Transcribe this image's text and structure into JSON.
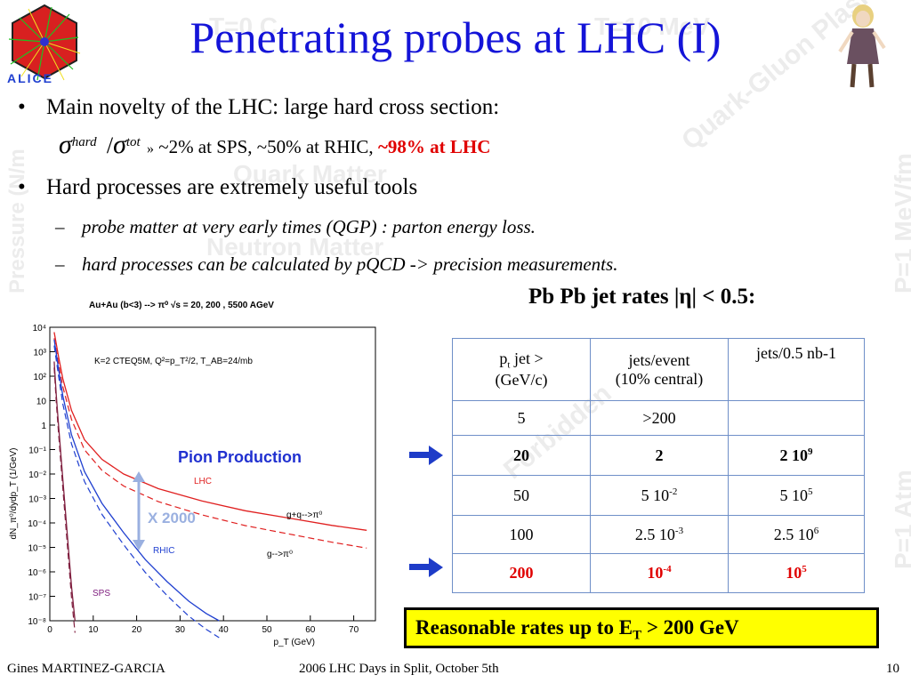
{
  "slide": {
    "title": "Penetrating probes at LHC (I)",
    "logo_text": "ALICE",
    "watermarks": [
      "T=0 C",
      "T=10 MeV",
      "Quark-Gluon Plasma",
      "Quark Matter",
      "Neutron Matter",
      "P=1 MeV/fm",
      "P=1 Atm",
      "Pressure (N/m",
      "Forbidden"
    ],
    "bullets": {
      "b1": "Main novelty of the LHC: large hard cross section:",
      "sigma_hard_sup": "hard",
      "sigma_tot_sup": "tot",
      "ratio_text": "~2% at SPS, ~50% at RHIC, ",
      "ratio_highlight": "~98% at LHC",
      "b2": "Hard processes are extremely useful tools",
      "sub1": "probe matter at very early times (QGP) : parton energy loss.",
      "sub2": "hard processes can be calculated by pQCD -> precision measurements."
    },
    "table_caption": "Pb Pb jet rates |η| < 0.5:",
    "table": {
      "headers": {
        "pt_label": "p",
        "pt_sub": "t",
        "pt_rest": " jet >",
        "pt_unit": "(GeV/c)",
        "jets_event": "jets/event",
        "central": "(10% central)",
        "jets_nb": "jets/0.5 nb-1"
      },
      "rows": [
        {
          "pt": "5",
          "event": ">200",
          "event_exp": "",
          "nb": "",
          "nb_exp": ""
        },
        {
          "pt": "20",
          "event": "2",
          "event_exp": "",
          "nb": "2 10",
          "nb_exp": "9"
        },
        {
          "pt": "50",
          "event": "5 10",
          "event_exp": "-2",
          "nb": "5 10",
          "nb_exp": "5"
        },
        {
          "pt": "100",
          "event": "2.5 10",
          "event_exp": "-3",
          "nb": "2.5 10",
          "nb_exp": "6"
        },
        {
          "pt": "200",
          "event": "10",
          "event_exp": "-4",
          "nb": "10",
          "nb_exp": "5"
        }
      ]
    },
    "conclusion_pre": "Reasonable rates up to E",
    "conclusion_sub": "T",
    "conclusion_post": " > 200 GeV",
    "footer": {
      "author": "Gines MARTINEZ-GARCIA",
      "event": "2006 LHC Days in Split, October 5th",
      "page": "10"
    },
    "colors": {
      "title": "#1414d8",
      "highlight": "#e00000",
      "box": "#ffff00",
      "arrow": "#1e3cc8",
      "pion_text": "#2030d0",
      "x2000": "#9ab0e0"
    }
  },
  "chart_data": {
    "type": "line",
    "title": "Au+Au (b<3) --> π⁰ √s = 20, 200 , 5500 AGeV",
    "params": "K=2 CTEQ5M, Q²=p_T²/2, T_AB=24/mb",
    "xlabel": "p_T (GeV)",
    "ylabel": "dN_π⁰/dydp_T (1/GeV)",
    "xlim": [
      0,
      75
    ],
    "ylim_exp": [
      -8,
      4
    ],
    "log_y": true,
    "xticks": [
      "0",
      "10",
      "20",
      "30",
      "40",
      "50",
      "60",
      "70"
    ],
    "yticks": [
      "10⁴",
      "10³",
      "10²",
      "10",
      "1",
      "10⁻¹",
      "10⁻²",
      "10⁻³",
      "10⁻⁴",
      "10⁻⁵",
      "10⁻⁶",
      "10⁻⁷",
      "10⁻⁸"
    ],
    "annotations": {
      "pion_production": "Pion Production",
      "x2000": "X 2000",
      "gq": "g+q-->π⁰",
      "g": "g-->π⁰"
    },
    "series": [
      {
        "name": "LHC",
        "color": "#e02020",
        "x": [
          1,
          2,
          3,
          5,
          8,
          12,
          17,
          25,
          35,
          45,
          55,
          65,
          73
        ],
        "log10y": [
          3.8,
          2.8,
          1.9,
          0.6,
          -0.6,
          -1.4,
          -2.0,
          -2.6,
          -3.1,
          -3.5,
          -3.8,
          -4.1,
          -4.3
        ]
      },
      {
        "name": "RHIC",
        "color": "#2040d0",
        "x": [
          1,
          2,
          3,
          5,
          8,
          12,
          17,
          22,
          27,
          32,
          36,
          39
        ],
        "log10y": [
          3.5,
          2.3,
          1.2,
          -0.4,
          -1.9,
          -3.2,
          -4.4,
          -5.5,
          -6.4,
          -7.2,
          -7.7,
          -8.0
        ]
      },
      {
        "name": "SPS",
        "color": "#802040",
        "x": [
          1,
          1.5,
          2,
          3,
          4,
          5,
          5.8
        ],
        "log10y": [
          2.6,
          1.2,
          0.0,
          -2.2,
          -4.4,
          -6.6,
          -8.0
        ]
      }
    ]
  }
}
